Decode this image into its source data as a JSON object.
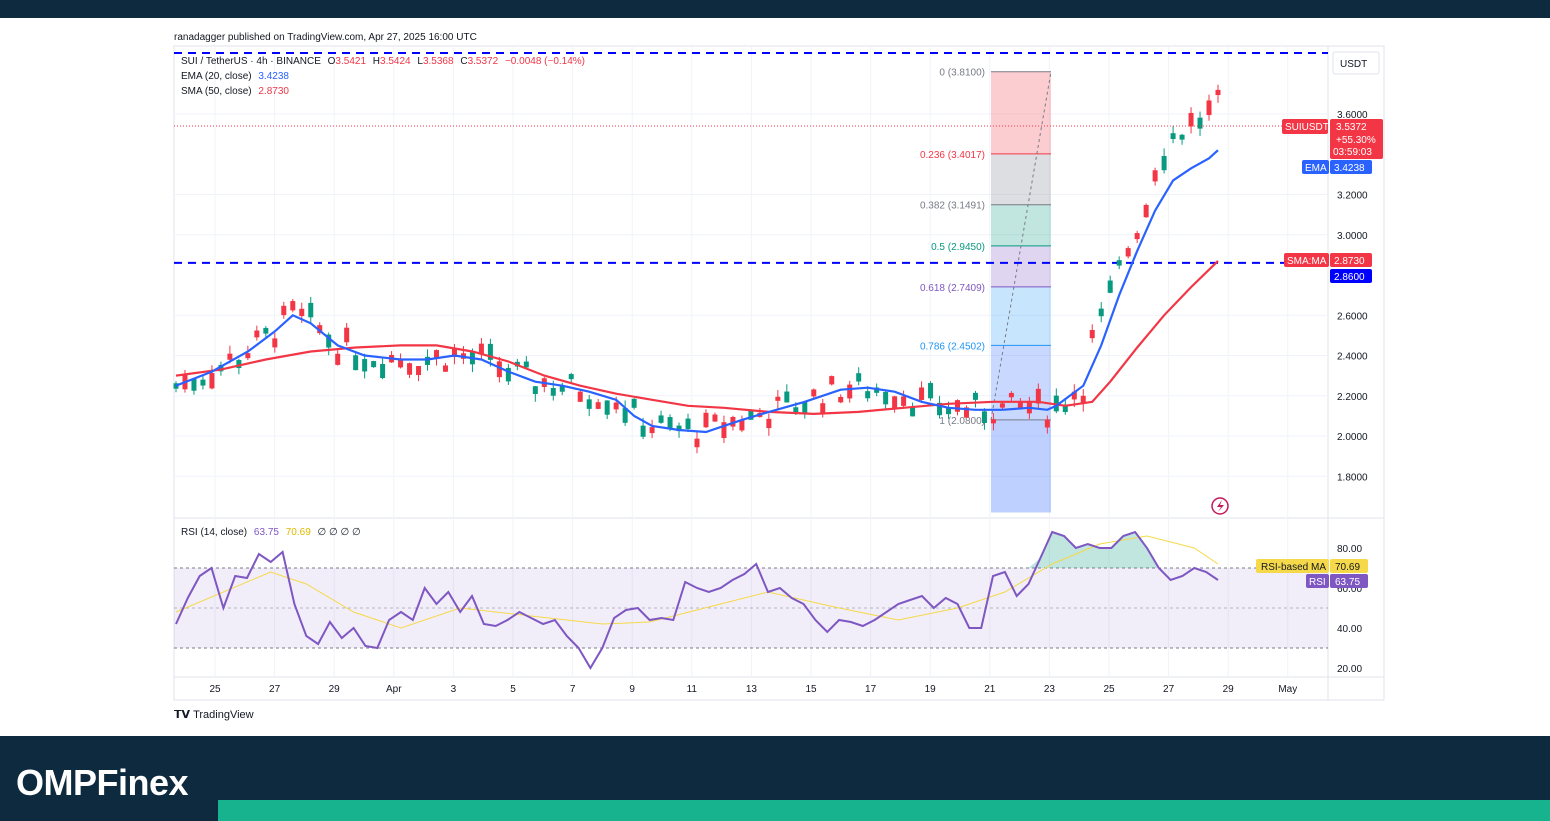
{
  "header": {
    "published": "ranadagger published on TradingView.com, Apr 27, 2025 16:00 UTC"
  },
  "legend": {
    "symbol": "SUI / TetherUS · 4h · BINANCE",
    "o_label": "O",
    "o_value": "3.5421",
    "h_label": "H",
    "h_value": "3.5424",
    "l_label": "L",
    "l_value": "3.5368",
    "c_label": "C",
    "c_value": "3.5372",
    "change": "−0.0048 (−0.14%)",
    "ema_label": "EMA (20, close)",
    "ema_value": "3.4238",
    "sma_label": "SMA (50, close)",
    "sma_value": "2.8730"
  },
  "rsi_legend": {
    "label": "RSI (14, close)",
    "rsi_value": "63.75",
    "ma_value": "70.69",
    "extras": "∅ ∅ ∅ ∅"
  },
  "price_axis": {
    "currency": "USDT",
    "ticks": [
      "3.6000",
      "3.2000",
      "3.0000",
      "2.6000",
      "2.4000",
      "2.2000",
      "2.0000",
      "1.8000"
    ]
  },
  "rsi_axis": {
    "ticks": [
      "80.00",
      "60.00",
      "40.00",
      "20.00"
    ]
  },
  "tags": {
    "symbol_tag": "SUIUSDT",
    "price": "3.5372",
    "pct": "+55.30%",
    "timer": "03:59:03",
    "ema_tag": "EMA",
    "ema_val": "3.4238",
    "sma_tag": "SMA:MA",
    "sma_val": "2.8730",
    "level_val": "2.8600",
    "rsi_ma_tag": "RSI-based MA",
    "rsi_ma_val": "70.69",
    "rsi_tag": "RSI",
    "rsi_val": "63.75"
  },
  "fib": [
    {
      "label": "0 (3.8100)",
      "price": 3.81
    },
    {
      "label": "0.236 (3.4017)",
      "price": 3.4017
    },
    {
      "label": "0.382 (3.1491)",
      "price": 3.1491
    },
    {
      "label": "0.5 (2.9450)",
      "price": 2.945
    },
    {
      "label": "0.618 (2.7409)",
      "price": 2.7409
    },
    {
      "label": "0.786 (2.4502)",
      "price": 2.4502
    },
    {
      "label": "1 (2.0800)",
      "price": 2.08
    }
  ],
  "x_axis": [
    "25",
    "27",
    "29",
    "Apr",
    "3",
    "5",
    "7",
    "9",
    "11",
    "13",
    "15",
    "17",
    "19",
    "21",
    "23",
    "25",
    "27",
    "29",
    "May"
  ],
  "footer": {
    "brand": "OMPFinex",
    "tv_logo": "TradingView"
  },
  "colors": {
    "ema": "#2962ff",
    "sma": "#f23645",
    "rsi": "#7e57c2",
    "rsi_ma": "#f5d94a",
    "candle_up": "#089981",
    "candle_down": "#f23645",
    "level": "#0000ff"
  },
  "chart_data": {
    "type": "candlestick",
    "horizontal_levels": [
      3.98,
      2.86
    ],
    "ema_series": [
      [
        0,
        2.25
      ],
      [
        4,
        2.32
      ],
      [
        8,
        2.42
      ],
      [
        11,
        2.52
      ],
      [
        13,
        2.6
      ],
      [
        15,
        2.56
      ],
      [
        18,
        2.45
      ],
      [
        21,
        2.4
      ],
      [
        25,
        2.38
      ],
      [
        28,
        2.38
      ],
      [
        31,
        2.4
      ],
      [
        34,
        2.38
      ],
      [
        37,
        2.32
      ],
      [
        40,
        2.27
      ],
      [
        43,
        2.25
      ],
      [
        46,
        2.22
      ],
      [
        49,
        2.18
      ],
      [
        51,
        2.1
      ],
      [
        53,
        2.05
      ],
      [
        56,
        2.03
      ],
      [
        59,
        2.02
      ],
      [
        61,
        2.05
      ],
      [
        63,
        2.08
      ],
      [
        66,
        2.12
      ],
      [
        70,
        2.17
      ],
      [
        74,
        2.23
      ],
      [
        77,
        2.24
      ],
      [
        80,
        2.22
      ],
      [
        83,
        2.17
      ],
      [
        86,
        2.14
      ],
      [
        89,
        2.13
      ],
      [
        92,
        2.13
      ],
      [
        95,
        2.14
      ],
      [
        97,
        2.13
      ],
      [
        98,
        2.15
      ],
      [
        101,
        2.25
      ],
      [
        103,
        2.45
      ],
      [
        105,
        2.7
      ],
      [
        107,
        2.92
      ],
      [
        109,
        3.12
      ],
      [
        111,
        3.27
      ],
      [
        113,
        3.33
      ],
      [
        115,
        3.38
      ],
      [
        116,
        3.42
      ]
    ],
    "sma_series": [
      [
        0,
        2.3
      ],
      [
        5,
        2.33
      ],
      [
        10,
        2.38
      ],
      [
        15,
        2.42
      ],
      [
        20,
        2.44
      ],
      [
        25,
        2.45
      ],
      [
        29,
        2.45
      ],
      [
        33,
        2.42
      ],
      [
        37,
        2.37
      ],
      [
        41,
        2.3
      ],
      [
        45,
        2.25
      ],
      [
        49,
        2.21
      ],
      [
        53,
        2.18
      ],
      [
        57,
        2.15
      ],
      [
        61,
        2.14
      ],
      [
        66,
        2.12
      ],
      [
        71,
        2.11
      ],
      [
        76,
        2.12
      ],
      [
        81,
        2.14
      ],
      [
        86,
        2.16
      ],
      [
        91,
        2.17
      ],
      [
        96,
        2.17
      ],
      [
        99,
        2.15
      ],
      [
        102,
        2.17
      ],
      [
        104,
        2.27
      ],
      [
        107,
        2.44
      ],
      [
        110,
        2.6
      ],
      [
        113,
        2.74
      ],
      [
        116,
        2.87
      ]
    ],
    "rsi_series": [
      [
        0,
        42
      ],
      [
        1,
        55
      ],
      [
        2,
        66
      ],
      [
        3,
        70
      ],
      [
        4,
        50
      ],
      [
        5,
        66
      ],
      [
        6,
        65
      ],
      [
        7,
        77
      ],
      [
        8,
        73
      ],
      [
        9,
        78
      ],
      [
        10,
        52
      ],
      [
        11,
        36
      ],
      [
        12,
        32
      ],
      [
        13,
        43
      ],
      [
        14,
        35
      ],
      [
        15,
        40
      ],
      [
        16,
        31
      ],
      [
        17,
        30
      ],
      [
        18,
        44
      ],
      [
        19,
        48
      ],
      [
        20,
        44
      ],
      [
        21,
        60
      ],
      [
        22,
        52
      ],
      [
        23,
        58
      ],
      [
        24,
        48
      ],
      [
        25,
        56
      ],
      [
        26,
        42
      ],
      [
        27,
        41
      ],
      [
        28,
        44
      ],
      [
        29,
        48
      ],
      [
        30,
        45
      ],
      [
        31,
        42
      ],
      [
        32,
        44
      ],
      [
        33,
        36
      ],
      [
        34,
        30
      ],
      [
        35,
        20
      ],
      [
        36,
        30
      ],
      [
        37,
        45
      ],
      [
        38,
        49
      ],
      [
        39,
        50
      ],
      [
        40,
        44
      ],
      [
        41,
        45
      ],
      [
        42,
        44
      ],
      [
        43,
        63
      ],
      [
        44,
        60
      ],
      [
        45,
        58
      ],
      [
        46,
        60
      ],
      [
        47,
        64
      ],
      [
        48,
        67
      ],
      [
        49,
        72
      ],
      [
        50,
        58
      ],
      [
        51,
        60
      ],
      [
        52,
        55
      ],
      [
        53,
        52
      ],
      [
        54,
        44
      ],
      [
        55,
        38
      ],
      [
        56,
        44
      ],
      [
        57,
        43
      ],
      [
        58,
        41
      ],
      [
        59,
        44
      ],
      [
        60,
        48
      ],
      [
        61,
        52
      ],
      [
        62,
        54
      ],
      [
        63,
        56
      ],
      [
        64,
        50
      ],
      [
        65,
        55
      ],
      [
        66,
        52
      ],
      [
        67,
        40
      ],
      [
        68,
        40
      ],
      [
        69,
        66
      ],
      [
        70,
        68
      ],
      [
        71,
        56
      ],
      [
        72,
        62
      ],
      [
        73,
        75
      ],
      [
        74,
        88
      ],
      [
        75,
        86
      ],
      [
        76,
        80
      ],
      [
        77,
        82
      ],
      [
        78,
        80
      ],
      [
        79,
        80
      ],
      [
        80,
        86
      ],
      [
        81,
        88
      ],
      [
        82,
        80
      ],
      [
        83,
        70
      ],
      [
        84,
        64
      ],
      [
        85,
        66
      ],
      [
        86,
        70
      ],
      [
        87,
        68
      ],
      [
        88,
        64
      ]
    ],
    "rsi_ma_series": [
      [
        0,
        48
      ],
      [
        8,
        68
      ],
      [
        11,
        62
      ],
      [
        15,
        48
      ],
      [
        19,
        40
      ],
      [
        24,
        50
      ],
      [
        30,
        46
      ],
      [
        36,
        42
      ],
      [
        40,
        43
      ],
      [
        46,
        52
      ],
      [
        50,
        58
      ],
      [
        56,
        50
      ],
      [
        61,
        44
      ],
      [
        66,
        50
      ],
      [
        70,
        58
      ],
      [
        74,
        72
      ],
      [
        78,
        82
      ],
      [
        82,
        86
      ],
      [
        86,
        80
      ],
      [
        88,
        72
      ]
    ],
    "candles_note": "4h candles approximated from chart",
    "y_range": [
      1.62,
      4.02
    ],
    "rsi_range": [
      15,
      95
    ]
  }
}
